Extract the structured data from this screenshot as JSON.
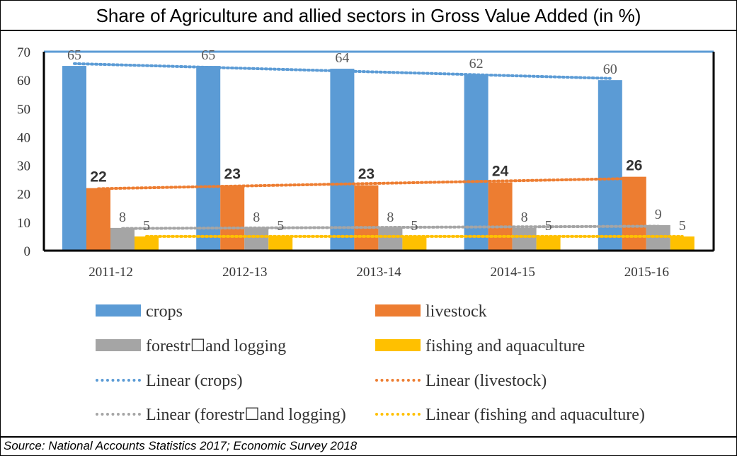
{
  "title": "Share of Agriculture and allied sectors in Gross Value Added (in %)",
  "source": "Source: National Accounts Statistics 2017; Economic Survey 2018",
  "legend": [
    {
      "label": "crops",
      "kind": "bar",
      "color": "#5b9bd5"
    },
    {
      "label": "livestock",
      "kind": "bar",
      "color": "#ed7d31"
    },
    {
      "label": "forestr☐and logging",
      "kind": "bar",
      "color": "#a5a5a5"
    },
    {
      "label": "fishing and aquaculture",
      "kind": "bar",
      "color": "#ffc000"
    },
    {
      "label": "Linear (crops)",
      "kind": "trend",
      "color": "#5b9bd5"
    },
    {
      "label": "Linear (livestock)",
      "kind": "trend",
      "color": "#ed7d31"
    },
    {
      "label": "Linear (forestr☐and logging)",
      "kind": "trend",
      "color": "#a5a5a5"
    },
    {
      "label": "Linear (fishing and aquaculture)",
      "kind": "trend",
      "color": "#ffc000"
    }
  ],
  "chart_data": {
    "type": "bar",
    "categories": [
      "2011-12",
      "2012-13",
      "2013-14",
      "2014-15",
      "2015-16"
    ],
    "series": [
      {
        "name": "crops",
        "color": "#5b9bd5",
        "values": [
          65,
          65,
          64,
          62,
          60
        ],
        "label_style": "plain"
      },
      {
        "name": "livestock",
        "color": "#ed7d31",
        "values": [
          22,
          23,
          23,
          24,
          26
        ],
        "label_style": "bold"
      },
      {
        "name": "forestr☐and logging",
        "color": "#a5a5a5",
        "values": [
          8,
          8,
          8,
          8,
          9
        ],
        "label_style": "plain"
      },
      {
        "name": "fishing and aquaculture",
        "color": "#ffc000",
        "values": [
          5,
          5,
          5,
          5,
          5
        ],
        "label_style": "plain"
      }
    ],
    "trendlines": [
      {
        "name": "Linear (crops)",
        "series": "crops",
        "type": "linear",
        "style": "dotted"
      },
      {
        "name": "Linear (livestock)",
        "series": "livestock",
        "type": "linear",
        "style": "dotted"
      },
      {
        "name": "Linear (forestr☐and logging)",
        "series": "forestr☐and logging",
        "type": "linear",
        "style": "dotted"
      },
      {
        "name": "Linear (fishing and aquaculture)",
        "series": "fishing and aquaculture",
        "type": "linear",
        "style": "dotted"
      }
    ],
    "ylim": [
      0,
      70
    ],
    "yticks": [
      0,
      10,
      20,
      30,
      40,
      50,
      60,
      70
    ],
    "grid": false,
    "legend_position": "bottom",
    "data_labels": true
  }
}
